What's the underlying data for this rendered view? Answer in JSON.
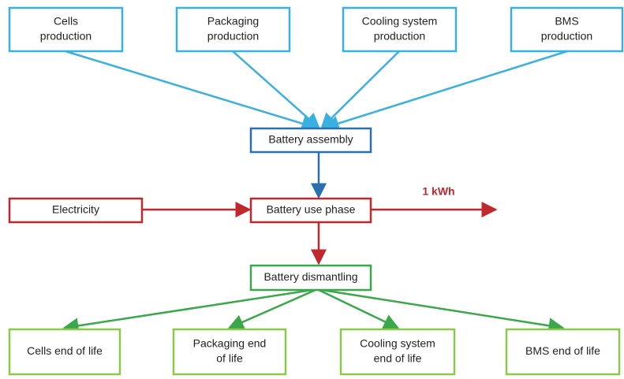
{
  "nodes": [
    {
      "lines": [
        "Cells",
        "production"
      ]
    },
    {
      "lines": [
        "Packaging",
        "production"
      ]
    },
    {
      "lines": [
        "Cooling system",
        "production"
      ]
    },
    {
      "lines": [
        "BMS",
        "production"
      ]
    },
    {
      "lines": [
        "Battery assembly"
      ]
    },
    {
      "lines": [
        "Electricity"
      ]
    },
    {
      "lines": [
        "Battery use phase"
      ]
    },
    {
      "lines": [
        "Battery dismantling"
      ]
    },
    {
      "lines": [
        "Cells end of life"
      ]
    },
    {
      "lines": [
        "Packaging end",
        "of life"
      ]
    },
    {
      "lines": [
        "Cooling system",
        "end of life"
      ]
    },
    {
      "lines": [
        "BMS end of life"
      ]
    }
  ],
  "output": {
    "label": "1 kWh"
  }
}
